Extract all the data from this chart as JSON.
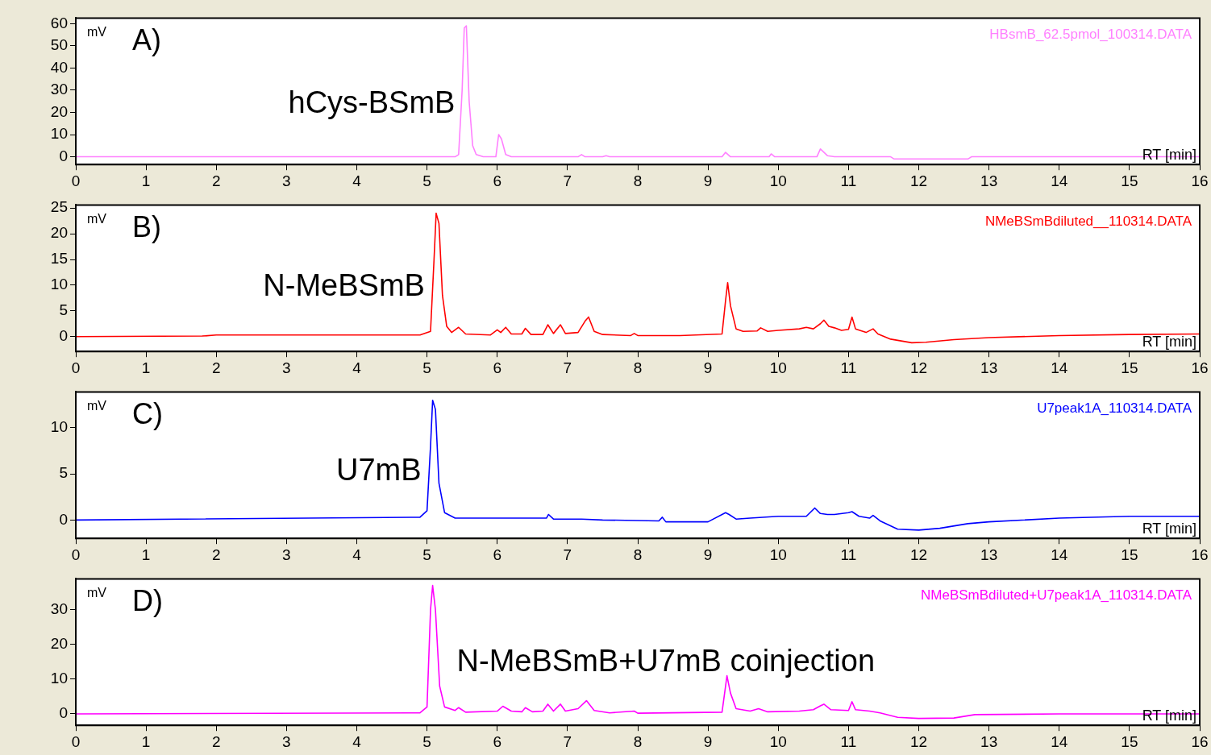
{
  "chart_data": [
    {
      "type": "line",
      "title": "A)",
      "ylabel": "mV",
      "xlabel": "RT [min]",
      "marker": "none",
      "line_style": "solid",
      "annotations": [
        "hCys-BSmB",
        "HBsmB_62.5pmol_100314.DATA"
      ],
      "xlim": [
        0,
        16
      ],
      "xticks": [
        0,
        1,
        2,
        3,
        4,
        5,
        6,
        7,
        8,
        9,
        10,
        11,
        12,
        13,
        14,
        15,
        16
      ],
      "ylim": [
        -3.5,
        62.5
      ],
      "yticks": [
        0,
        10,
        20,
        30,
        40,
        50,
        60
      ],
      "series": [
        {
          "color": "#ff80ff",
          "x": [
            0,
            5.4,
            5.45,
            5.5,
            5.53,
            5.56,
            5.6,
            5.65,
            5.7,
            5.8,
            5.98,
            6.02,
            6.06,
            6.12,
            6.2,
            7.15,
            7.2,
            7.25,
            7.5,
            7.55,
            7.6,
            9.2,
            9.25,
            9.32,
            9.87,
            9.9,
            9.95,
            10.55,
            10.6,
            10.7,
            10.8,
            11.6,
            11.65,
            12.7,
            12.75,
            16
          ],
          "values": [
            0,
            0,
            1,
            30,
            58,
            59,
            25,
            5,
            1,
            0,
            0,
            10,
            8,
            1,
            0,
            0,
            1,
            0,
            0,
            0.5,
            0,
            0,
            2,
            0,
            0,
            1.3,
            0,
            0,
            3.5,
            0.5,
            0,
            0,
            -1,
            -1,
            0,
            0
          ]
        }
      ]
    },
    {
      "type": "line",
      "title": "B)",
      "ylabel": "mV",
      "xlabel": "RT [min]",
      "marker": "none",
      "line_style": "solid",
      "annotations": [
        "N-MeBSmB",
        "NMeBSmBdiluted__110314.DATA"
      ],
      "xlim": [
        0,
        16
      ],
      "xticks": [
        0,
        1,
        2,
        3,
        4,
        5,
        6,
        7,
        8,
        9,
        10,
        11,
        12,
        13,
        14,
        15,
        16
      ],
      "ylim": [
        -2.9,
        25.6
      ],
      "yticks": [
        0,
        5,
        10,
        15,
        20,
        25
      ],
      "series": [
        {
          "color": "#ff0000",
          "x": [
            0,
            1.8,
            2,
            4.9,
            5.05,
            5.1,
            5.13,
            5.17,
            5.22,
            5.28,
            5.35,
            5.45,
            5.55,
            5.9,
            6.0,
            6.05,
            6.12,
            6.2,
            6.35,
            6.4,
            6.48,
            6.65,
            6.72,
            6.8,
            6.9,
            6.97,
            7.15,
            7.25,
            7.3,
            7.38,
            7.5,
            7.9,
            7.95,
            8.0,
            8.6,
            9.2,
            9.25,
            9.28,
            9.32,
            9.4,
            9.5,
            9.7,
            9.75,
            9.85,
            10.0,
            10.3,
            10.4,
            10.5,
            10.6,
            10.65,
            10.72,
            10.8,
            10.9,
            11.0,
            11.05,
            11.1,
            11.25,
            11.35,
            11.42,
            11.6,
            11.9,
            12.1,
            12.5,
            13,
            14,
            15,
            16
          ],
          "values": [
            0,
            0.1,
            0.3,
            0.3,
            1,
            15,
            24,
            22,
            8,
            2,
            0.8,
            1.8,
            0.5,
            0.3,
            1.3,
            0.8,
            1.8,
            0.5,
            0.5,
            1.6,
            0.4,
            0.4,
            2.3,
            0.6,
            2.3,
            0.6,
            0.8,
            3,
            3.8,
            1,
            0.4,
            0.2,
            0.6,
            0.2,
            0.2,
            0.5,
            7,
            10.5,
            6,
            1.5,
            1,
            1.1,
            1.7,
            1,
            1.2,
            1.5,
            1.8,
            1.5,
            2.5,
            3.2,
            2,
            1.7,
            1.2,
            1.4,
            3.8,
            1.5,
            0.8,
            1.5,
            0.5,
            -0.5,
            -1.2,
            -1.1,
            -0.6,
            -0.2,
            0.2,
            0.4,
            0.5
          ]
        }
      ]
    },
    {
      "type": "line",
      "title": "C)",
      "ylabel": "mV",
      "xlabel": "RT [min]",
      "marker": "none",
      "line_style": "solid",
      "annotations": [
        "U7mB",
        "U7peak1A_110314.DATA"
      ],
      "xlim": [
        0,
        16
      ],
      "xticks": [
        0,
        1,
        2,
        3,
        4,
        5,
        6,
        7,
        8,
        9,
        10,
        11,
        12,
        13,
        14,
        15,
        16
      ],
      "ylim": [
        -2,
        13.9
      ],
      "yticks": [
        0,
        5,
        10
      ],
      "series": [
        {
          "color": "#0000ff",
          "x": [
            0,
            4.9,
            5.0,
            5.05,
            5.08,
            5.12,
            5.17,
            5.25,
            5.4,
            6.7,
            6.73,
            6.8,
            7.2,
            7.5,
            8.3,
            8.35,
            8.4,
            9.0,
            9.25,
            9.3,
            9.4,
            9.6,
            10,
            10.4,
            10.52,
            10.6,
            10.7,
            10.8,
            11.0,
            11.05,
            11.15,
            11.3,
            11.35,
            11.45,
            11.7,
            12.0,
            12.3,
            12.7,
            13,
            14,
            15,
            16
          ],
          "values": [
            0,
            0.3,
            1,
            8,
            13,
            12,
            4,
            0.8,
            0.2,
            0.2,
            0.6,
            0.1,
            0.1,
            0,
            -0.1,
            0.3,
            -0.2,
            -0.2,
            0.8,
            0.6,
            0.1,
            0.2,
            0.4,
            0.4,
            1.3,
            0.7,
            0.6,
            0.6,
            0.8,
            0.9,
            0.4,
            0.2,
            0.5,
            -0.1,
            -1,
            -1.1,
            -0.9,
            -0.4,
            -0.2,
            0.2,
            0.4,
            0.4
          ]
        }
      ]
    },
    {
      "type": "line",
      "title": "D)",
      "ylabel": "mV",
      "xlabel": "RT [min]",
      "marker": "none",
      "line_style": "solid",
      "annotations": [
        "N-MeBSmB+U7mB coinjection",
        "NMeBSmBdiluted+U7peak1A_110314.DATA"
      ],
      "xlim": [
        0,
        16
      ],
      "xticks": [
        0,
        1,
        2,
        3,
        4,
        5,
        6,
        7,
        8,
        9,
        10,
        11,
        12,
        13,
        14,
        15,
        16
      ],
      "ylim": [
        -3.3,
        38.9
      ],
      "yticks": [
        0,
        10,
        20,
        30
      ],
      "series": [
        {
          "color": "#ff00ff",
          "x": [
            0,
            4.9,
            5.0,
            5.05,
            5.08,
            5.12,
            5.18,
            5.25,
            5.4,
            5.45,
            5.55,
            6.0,
            6.08,
            6.2,
            6.35,
            6.4,
            6.5,
            6.65,
            6.72,
            6.8,
            6.9,
            6.97,
            7.15,
            7.27,
            7.38,
            7.6,
            7.95,
            8.0,
            9.2,
            9.25,
            9.27,
            9.32,
            9.4,
            9.6,
            9.72,
            9.85,
            10.3,
            10.5,
            10.6,
            10.65,
            10.75,
            11.0,
            11.05,
            11.1,
            11.3,
            11.45,
            11.7,
            12.0,
            12.5,
            12.8,
            14,
            16
          ],
          "values": [
            0,
            0.3,
            2,
            30,
            37,
            30,
            8,
            2,
            1,
            1.8,
            0.5,
            0.8,
            2.2,
            0.8,
            0.6,
            1.8,
            0.6,
            0.8,
            2.8,
            0.8,
            2.8,
            0.8,
            1.5,
            3.8,
            1,
            0.3,
            0.8,
            0.2,
            0.5,
            8,
            11,
            6,
            1.5,
            0.8,
            1.5,
            0.6,
            0.8,
            1.2,
            2.3,
            2.8,
            1.2,
            1,
            3.5,
            1.2,
            0.8,
            0.3,
            -1,
            -1.3,
            -1.2,
            -0.2,
            0,
            0
          ]
        }
      ]
    }
  ]
}
